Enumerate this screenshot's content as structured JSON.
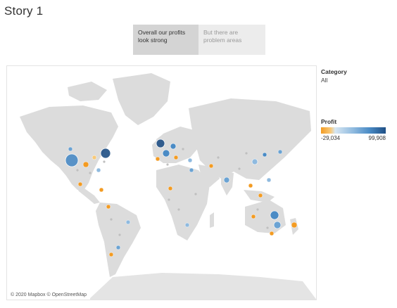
{
  "story": {
    "title": "Story 1",
    "points": [
      {
        "label": "Overall our profits look strong",
        "active": true
      },
      {
        "label": "But there are problem areas",
        "active": false
      }
    ]
  },
  "legend": {
    "category_title": "Category",
    "category_value": "All",
    "profit_title": "Profit",
    "profit_min": "-29,034",
    "profit_max": "99,908",
    "colors": {
      "negative": "#f39b22",
      "mid": "#8fbadf",
      "positive": "#1f4f85"
    }
  },
  "map": {
    "credit": "© 2020 Mapbox © OpenStreetMap",
    "land_color": "#dcdcdc",
    "marks": [
      [
        0.02,
        0.24,
        "#4a8bc5",
        6
      ],
      [
        0.05,
        0.26,
        "#6ba3d3",
        3
      ],
      [
        0.1,
        0.28,
        "#6ba3d3",
        5
      ],
      [
        0.13,
        0.3,
        "#1f4f85",
        7
      ],
      [
        0.08,
        0.33,
        "#f39b22",
        4
      ],
      [
        0.11,
        0.33,
        "#8fbadf",
        3
      ],
      [
        0.14,
        0.34,
        "#f7c97a",
        3
      ],
      [
        0.12,
        0.37,
        "#8fbadf",
        3
      ],
      [
        0.08,
        0.4,
        "#f39b22",
        3
      ],
      [
        0.03,
        0.38,
        "#f39b22",
        3
      ],
      [
        0.06,
        0.36,
        "#8fbadf",
        3
      ],
      [
        0.7,
        0.71,
        "#4a8bc5",
        5
      ],
      [
        0.72,
        0.71,
        "#8fbadf",
        3
      ],
      [
        0.76,
        0.74,
        "#f39b22",
        4
      ],
      [
        0.66,
        0.74,
        "#8fbadf",
        3
      ],
      [
        0.68,
        0.77,
        "#6ba3d3",
        3
      ],
      [
        0.73,
        0.78,
        "#8fbadf",
        3
      ],
      [
        0.75,
        0.84,
        "#f39b22",
        4
      ],
      [
        0.72,
        0.8,
        "#4a8bc5",
        3
      ],
      [
        0.52,
        0.41,
        "#8fbadf",
        3
      ],
      [
        0.53,
        0.5,
        "#f39b22",
        3
      ],
      [
        0.54,
        0.56,
        "#6ba3d3",
        3
      ],
      [
        0.5,
        0.62,
        "#8fbadf",
        3
      ],
      [
        0.46,
        0.5,
        "#8fbadf",
        3
      ],
      [
        0.47,
        0.56,
        "#f39b22",
        3
      ],
      [
        0.56,
        0.46,
        "#6ba3d3",
        3
      ],
      [
        0.58,
        0.52,
        "#f7c97a",
        3
      ],
      [
        0.62,
        0.58,
        "#4a8bc5",
        4
      ],
      [
        0.66,
        0.6,
        "#6ba3d3",
        3
      ],
      [
        0.64,
        0.66,
        "#f39b22",
        3
      ],
      [
        0.68,
        0.63,
        "#8fbadf",
        3
      ]
    ]
  }
}
